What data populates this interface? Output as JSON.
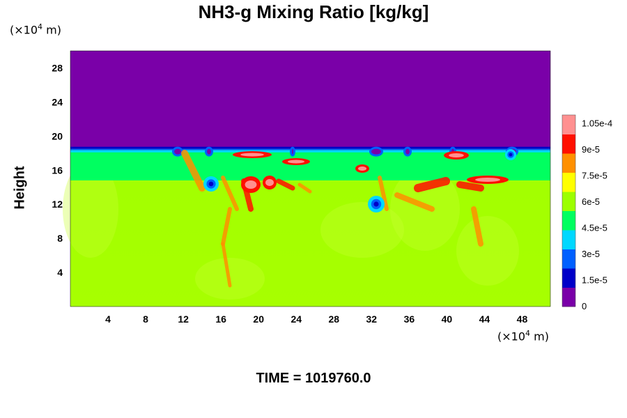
{
  "chart_data": {
    "type": "heatmap",
    "title": "NH3-g Mixing Ratio [kg/kg]",
    "ylabel": "Height",
    "x_unit": {
      "base": "(×10",
      "exp": "4",
      "suffix": " m)"
    },
    "y_unit": {
      "base": "(×10",
      "exp": "4",
      "suffix": " m)"
    },
    "xlim": [
      0,
      51
    ],
    "ylim": [
      0,
      30
    ],
    "x_ticks": [
      4,
      8,
      12,
      16,
      20,
      24,
      28,
      32,
      36,
      40,
      44,
      48
    ],
    "y_ticks": [
      4,
      8,
      12,
      16,
      20,
      24,
      28
    ],
    "colorbar": {
      "range": [
        0,
        0.00011
      ],
      "tick_values": [
        0,
        1.5e-05,
        3e-05,
        4.5e-05,
        6e-05,
        7.5e-05,
        9e-05,
        0.000105
      ],
      "tick_labels": [
        "0",
        "1.5e-5",
        "3e-5",
        "4.5e-5",
        "6e-5",
        "7.5e-5",
        "9e-5",
        "1.05e-4"
      ]
    },
    "colormap": [
      "#7a00a8",
      "#0000c8",
      "#0060ff",
      "#00d8ff",
      "#00ff60",
      "#9cff00",
      "#ffff00",
      "#ff9000",
      "#ff1000",
      "#ff9090"
    ],
    "field_summary": {
      "upper_layer_value": 0,
      "interface_height": 18.5,
      "lower_layer_value": 7e-05
    }
  },
  "time_label": "TIME = 1019760.0"
}
